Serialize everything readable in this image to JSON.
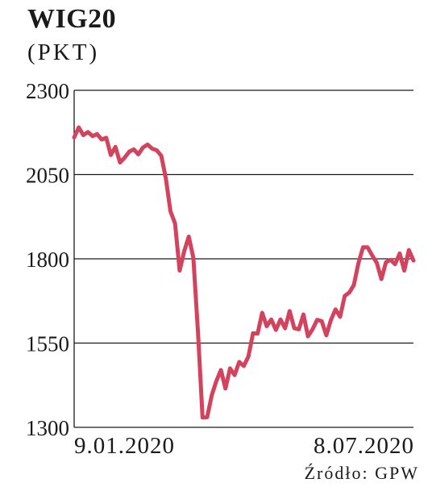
{
  "header": {
    "title": "WIG20",
    "subtitle": "(PKT)"
  },
  "source": "Źródło: GPW",
  "colors": {
    "line": "#d3435e",
    "grid": "#1a1a1a",
    "text": "#1a1a1a"
  },
  "chart_data": {
    "type": "line",
    "title": "WIG20",
    "ylabel": "(PKT)",
    "ylim": [
      1300,
      2300
    ],
    "yticks": [
      1300,
      1550,
      1800,
      2050,
      2300
    ],
    "ytick_labels": [
      "1300",
      "1550",
      "1800",
      "2050",
      "2300"
    ],
    "x_start_label": "9.01.2020",
    "x_end_label": "8.07.2020",
    "grid": true,
    "series": [
      {
        "name": "",
        "values": [
          2160,
          2190,
          2167,
          2176,
          2164,
          2170,
          2154,
          2159,
          2108,
          2132,
          2086,
          2100,
          2118,
          2125,
          2110,
          2130,
          2139,
          2127,
          2122,
          2106,
          2038,
          1941,
          1905,
          1765,
          1822,
          1866,
          1803,
          1584,
          1329,
          1330,
          1395,
          1437,
          1470,
          1415,
          1475,
          1455,
          1494,
          1482,
          1510,
          1579,
          1578,
          1640,
          1600,
          1620,
          1589,
          1620,
          1594,
          1645,
          1594,
          1591,
          1635,
          1570,
          1591,
          1619,
          1615,
          1573,
          1619,
          1650,
          1628,
          1690,
          1700,
          1722,
          1787,
          1834,
          1834,
          1810,
          1788,
          1740,
          1790,
          1797,
          1784,
          1816,
          1765,
          1826,
          1795
        ]
      }
    ]
  }
}
